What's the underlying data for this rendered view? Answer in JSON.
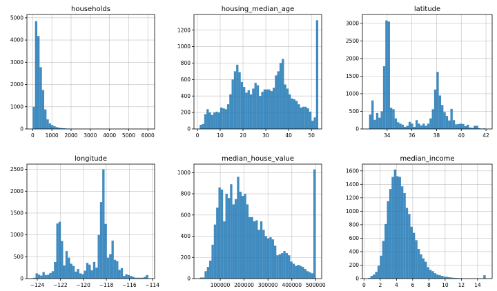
{
  "chart_data": [
    {
      "type": "bar",
      "title": "households",
      "bin_min": 0,
      "bin_width": 120,
      "values": [
        1000,
        4850,
        4180,
        2780,
        1750,
        880,
        430,
        250,
        175,
        120,
        80,
        55,
        40,
        30,
        22,
        16,
        12,
        9,
        7,
        5,
        4,
        3,
        3,
        2,
        2,
        1,
        1,
        1,
        1,
        1,
        1,
        0,
        1,
        0,
        1,
        0,
        0,
        1,
        0,
        0,
        0,
        0,
        1,
        0,
        0,
        0,
        0,
        0,
        0,
        0,
        1
      ],
      "xlim": [
        -300,
        6350
      ],
      "ylim": [
        0,
        5150
      ],
      "xticks": [
        0,
        1000,
        2000,
        3000,
        4000,
        5000,
        6000
      ],
      "yticks": [
        0,
        1000,
        2000,
        3000,
        4000,
        5000
      ],
      "grid": true
    },
    {
      "type": "bar",
      "title": "housing_median_age",
      "bin_min": 1,
      "bin_width": 1,
      "values": [
        50,
        60,
        180,
        240,
        200,
        170,
        200,
        210,
        200,
        260,
        250,
        240,
        300,
        420,
        600,
        700,
        780,
        690,
        570,
        510,
        440,
        470,
        420,
        490,
        560,
        530,
        400,
        450,
        480,
        480,
        480,
        460,
        500,
        650,
        700,
        800,
        850,
        540,
        490,
        420,
        370,
        360,
        340,
        300,
        260,
        270,
        270,
        250,
        210,
        100,
        140,
        1320
      ],
      "xlim": [
        -1.5,
        54.5
      ],
      "ylim": [
        0,
        1390
      ],
      "xticks": [
        0,
        10,
        20,
        30,
        40,
        50
      ],
      "yticks": [
        0,
        200,
        400,
        600,
        800,
        1000,
        1200
      ],
      "grid": true
    },
    {
      "type": "bar",
      "title": "latitude",
      "bin_min": 32.54,
      "bin_width": 0.188,
      "values": [
        410,
        810,
        260,
        450,
        320,
        500,
        1780,
        3080,
        3050,
        600,
        560,
        300,
        190,
        150,
        120,
        60,
        90,
        200,
        150,
        60,
        250,
        150,
        100,
        150,
        90,
        150,
        300,
        560,
        1120,
        1620,
        950,
        680,
        480,
        370,
        240,
        570,
        250,
        130,
        140,
        150,
        140,
        80,
        120,
        40,
        30,
        90,
        90,
        20,
        10,
        15
      ],
      "xlim": [
        32.0,
        42.5
      ],
      "ylim": [
        0,
        3250
      ],
      "xticks": [
        34,
        36,
        38,
        40,
        42
      ],
      "yticks": [
        0,
        500,
        1000,
        1500,
        2000,
        2500,
        3000
      ],
      "grid": true
    },
    {
      "type": "bar",
      "title": "longitude",
      "bin_min": -124.35,
      "bin_width": 0.2,
      "values": [
        20,
        120,
        90,
        70,
        150,
        80,
        90,
        130,
        170,
        380,
        1260,
        1300,
        860,
        300,
        630,
        480,
        340,
        290,
        160,
        220,
        120,
        100,
        180,
        360,
        320,
        190,
        380,
        250,
        1000,
        1750,
        2500,
        1250,
        480,
        560,
        870,
        430,
        400,
        200,
        240,
        60,
        100,
        80,
        60,
        40,
        20,
        20,
        20,
        20,
        40,
        80
      ],
      "xlim": [
        -124.9,
        -113.8
      ],
      "ylim": [
        0,
        2620
      ],
      "xticks": [
        -124,
        -122,
        -120,
        -118,
        -116,
        -114
      ],
      "yticks": [
        0,
        500,
        1000,
        1500,
        2000,
        2500
      ],
      "grid": true
    },
    {
      "type": "bar",
      "title": "median_house_value",
      "bin_min": 15000,
      "bin_width": 9700,
      "values": [
        10,
        10,
        70,
        110,
        170,
        320,
        510,
        670,
        860,
        840,
        540,
        800,
        760,
        890,
        700,
        750,
        960,
        820,
        780,
        800,
        700,
        580,
        580,
        540,
        550,
        460,
        540,
        460,
        400,
        380,
        390,
        370,
        310,
        220,
        230,
        240,
        260,
        240,
        220,
        160,
        140,
        120,
        130,
        120,
        110,
        90,
        70,
        60,
        50,
        1030
      ],
      "xlim": [
        -10000,
        525000
      ],
      "ylim": [
        0,
        1080
      ],
      "xticks": [
        100000,
        200000,
        300000,
        400000,
        500000
      ],
      "yticks": [
        0,
        200,
        400,
        600,
        800,
        1000
      ],
      "grid": true
    },
    {
      "type": "bar",
      "title": "median_income",
      "bin_min": 0.5,
      "bin_width": 0.29,
      "values": [
        10,
        40,
        60,
        100,
        190,
        340,
        560,
        810,
        1150,
        1330,
        1510,
        1620,
        1520,
        1510,
        1370,
        1270,
        1050,
        960,
        770,
        680,
        570,
        440,
        360,
        300,
        250,
        170,
        130,
        110,
        80,
        60,
        50,
        40,
        30,
        25,
        20,
        15,
        12,
        10,
        8,
        6,
        5,
        4,
        3,
        3,
        2,
        2,
        2,
        2,
        2,
        50
      ],
      "xlim": [
        -0.2,
        15.8
      ],
      "ylim": [
        0,
        1700
      ],
      "xticks": [
        0,
        2,
        4,
        6,
        8,
        10,
        12,
        14
      ],
      "yticks": [
        0,
        200,
        400,
        600,
        800,
        1000,
        1200,
        1400,
        1600
      ],
      "grid": true
    }
  ]
}
